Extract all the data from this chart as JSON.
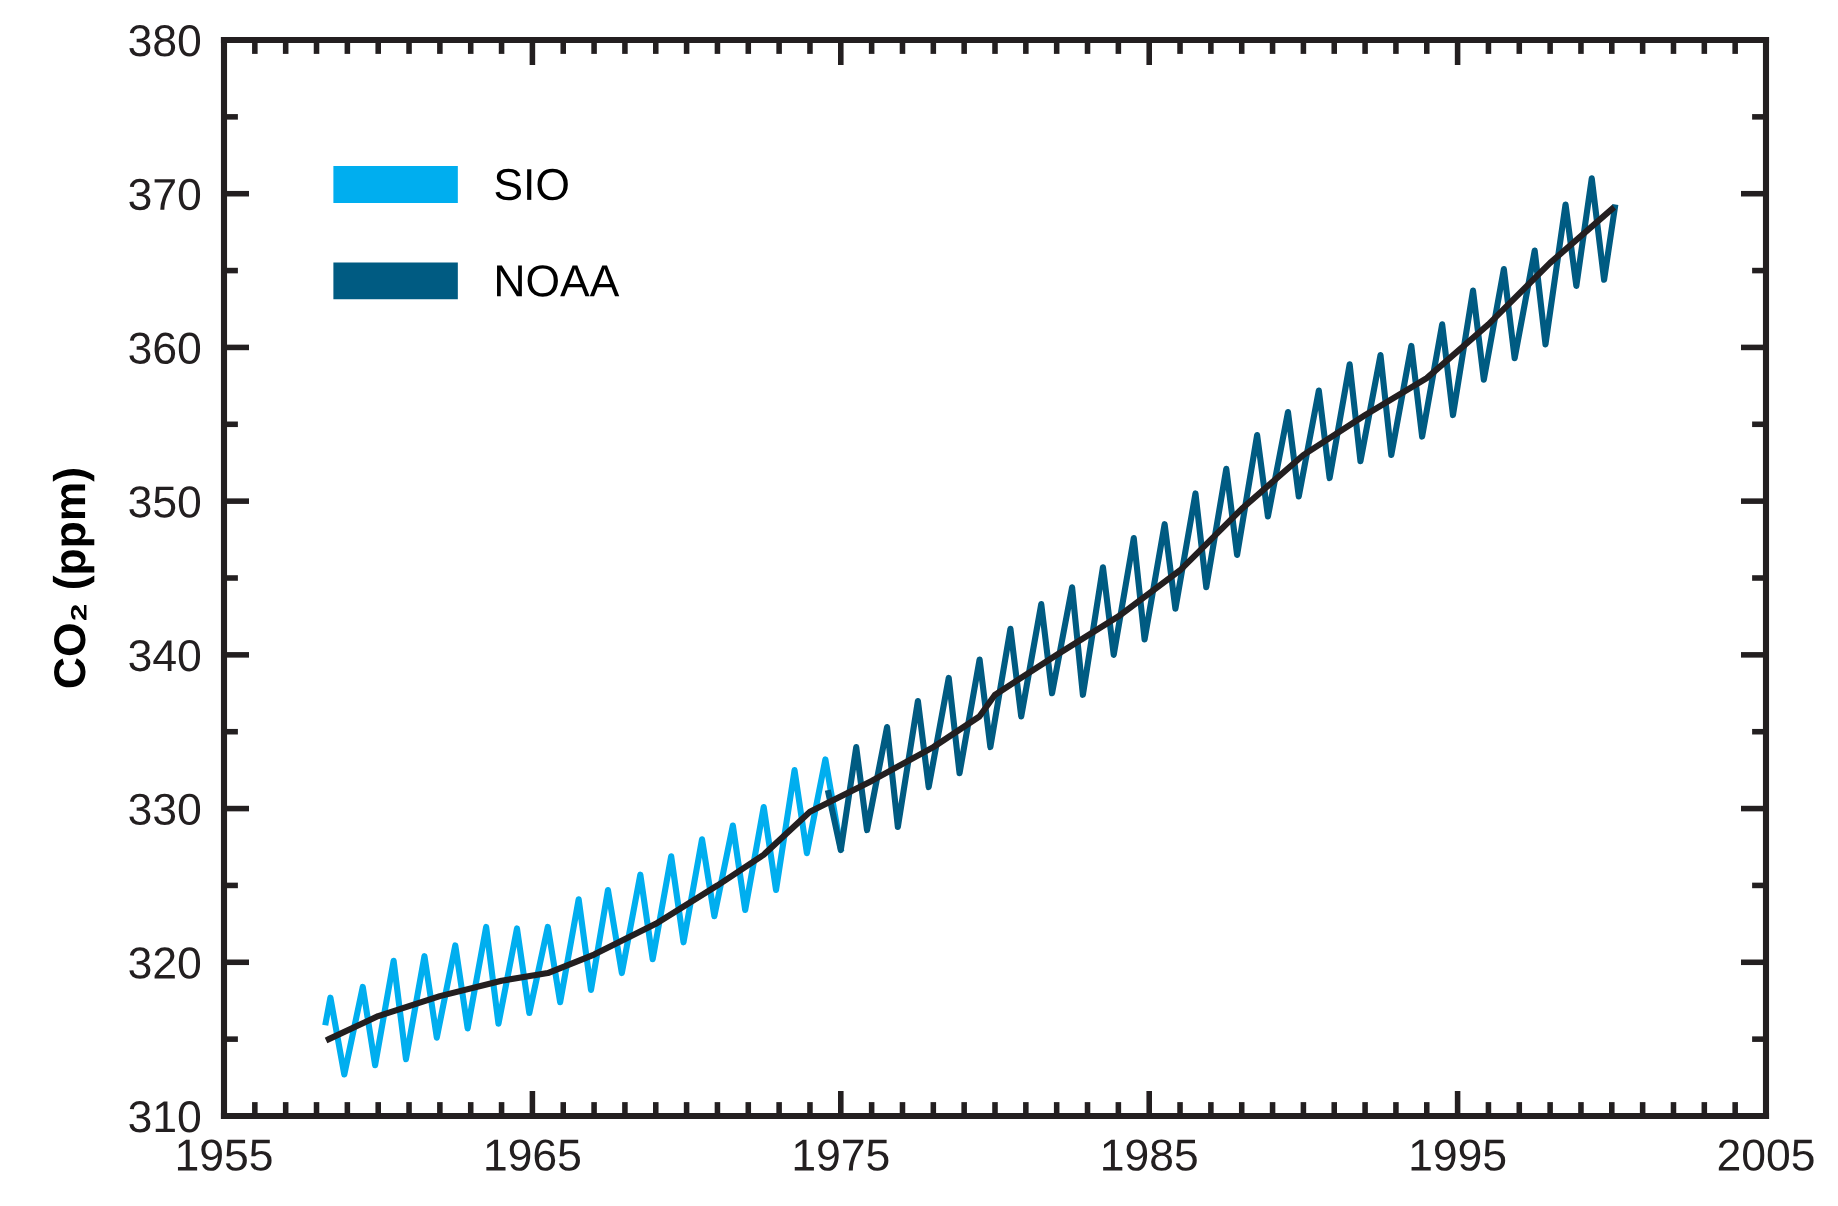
{
  "chart_data": {
    "type": "line",
    "ylabel": "CO₂ (ppm)",
    "xlim": [
      1955,
      2005
    ],
    "ylim": [
      310,
      380
    ],
    "xticks": [
      1955,
      {
        "value": 1956,
        "label": null
      },
      {
        "value": 1957,
        "label": null
      },
      {
        "value": 1958,
        "label": null
      },
      {
        "value": 1959,
        "label": null
      },
      {
        "value": 1960,
        "label": null
      },
      {
        "value": 1961,
        "label": null
      },
      {
        "value": 1962,
        "label": null
      },
      {
        "value": 1963,
        "label": null
      },
      {
        "value": 1964,
        "label": null
      },
      1965,
      {
        "value": 1966,
        "label": null
      },
      {
        "value": 1967,
        "label": null
      },
      {
        "value": 1968,
        "label": null
      },
      {
        "value": 1969,
        "label": null
      },
      {
        "value": 1970,
        "label": null
      },
      {
        "value": 1971,
        "label": null
      },
      {
        "value": 1972,
        "label": null
      },
      {
        "value": 1973,
        "label": null
      },
      {
        "value": 1974,
        "label": null
      },
      1975,
      {
        "value": 1976,
        "label": null
      },
      {
        "value": 1977,
        "label": null
      },
      {
        "value": 1978,
        "label": null
      },
      {
        "value": 1979,
        "label": null
      },
      {
        "value": 1980,
        "label": null
      },
      {
        "value": 1981,
        "label": null
      },
      {
        "value": 1982,
        "label": null
      },
      {
        "value": 1983,
        "label": null
      },
      {
        "value": 1984,
        "label": null
      },
      1985,
      {
        "value": 1986,
        "label": null
      },
      {
        "value": 1987,
        "label": null
      },
      {
        "value": 1988,
        "label": null
      },
      {
        "value": 1989,
        "label": null
      },
      {
        "value": 1990,
        "label": null
      },
      {
        "value": 1991,
        "label": null
      },
      {
        "value": 1992,
        "label": null
      },
      {
        "value": 1993,
        "label": null
      },
      {
        "value": 1994,
        "label": null
      },
      1995,
      {
        "value": 1996,
        "label": null
      },
      {
        "value": 1997,
        "label": null
      },
      {
        "value": 1998,
        "label": null
      },
      {
        "value": 1999,
        "label": null
      },
      {
        "value": 2000,
        "label": null
      },
      {
        "value": 2001,
        "label": null
      },
      {
        "value": 2002,
        "label": null
      },
      {
        "value": 2003,
        "label": null
      },
      {
        "value": 2004,
        "label": null
      },
      2005
    ],
    "yticks": [
      310,
      {
        "value": 315,
        "label": null
      },
      320,
      {
        "value": 325,
        "label": null
      },
      330,
      {
        "value": 335,
        "label": null
      },
      340,
      {
        "value": 345,
        "label": null
      },
      350,
      {
        "value": 355,
        "label": null
      },
      360,
      {
        "value": 365,
        "label": null
      },
      370,
      {
        "value": 375,
        "label": null
      },
      380
    ],
    "grid": false,
    "legend": "top left",
    "marker": "none",
    "line_style": "solid",
    "series": [
      {
        "name": "SIO",
        "color": "#00aeef",
        "x": [
          1958.3,
          1958.45,
          1958.9,
          1959.5,
          1959.9,
          1960.5,
          1960.9,
          1961.5,
          1961.9,
          1962.5,
          1962.9,
          1963.5,
          1963.9,
          1964.5,
          1964.9,
          1965.5,
          1965.9,
          1966.5,
          1966.9,
          1967.45,
          1967.9,
          1968.5,
          1968.9,
          1969.5,
          1969.9,
          1970.5,
          1970.9,
          1971.5,
          1971.9,
          1972.5,
          1972.9,
          1973.5,
          1973.9,
          1974.5,
          1975.0
        ],
        "values": [
          316.1,
          317.7,
          312.7,
          318.4,
          313.3,
          320.1,
          313.7,
          320.4,
          315.1,
          321.1,
          315.7,
          322.3,
          316.0,
          322.2,
          316.7,
          322.3,
          317.4,
          324.1,
          318.2,
          324.7,
          319.3,
          325.7,
          320.2,
          326.9,
          321.3,
          328.0,
          323.0,
          328.9,
          323.4,
          330.1,
          324.7,
          332.5,
          327.1,
          333.2,
          327.4
        ]
      },
      {
        "name": "NOAA",
        "color": "#005b82",
        "x": [
          1974.6,
          1975.0,
          1975.5,
          1975.85,
          1976.5,
          1976.85,
          1977.5,
          1977.85,
          1978.5,
          1978.85,
          1979.5,
          1979.85,
          1980.5,
          1980.85,
          1981.5,
          1981.85,
          1982.5,
          1982.85,
          1983.5,
          1983.85,
          1984.5,
          1984.85,
          1985.5,
          1985.85,
          1986.5,
          1986.85,
          1987.5,
          1987.85,
          1988.5,
          1988.85,
          1989.5,
          1989.85,
          1990.5,
          1990.85,
          1991.5,
          1991.85,
          1992.5,
          1992.85,
          1993.5,
          1993.85,
          1994.5,
          1994.85,
          1995.5,
          1995.85,
          1996.5,
          1996.85,
          1997.5,
          1997.85,
          1998.5,
          1998.85,
          1999.35,
          1999.75,
          2000.1
        ],
        "values": [
          331.0,
          327.3,
          334.0,
          328.6,
          335.3,
          328.8,
          337.0,
          331.4,
          338.5,
          332.3,
          339.7,
          334.0,
          341.7,
          336.0,
          343.3,
          337.5,
          344.4,
          337.4,
          345.7,
          340.0,
          347.6,
          341.0,
          348.5,
          343.0,
          350.5,
          344.4,
          352.1,
          346.5,
          354.3,
          349.0,
          355.8,
          350.3,
          357.2,
          351.5,
          358.9,
          352.6,
          359.5,
          353.0,
          360.1,
          354.2,
          361.5,
          355.6,
          363.7,
          357.9,
          365.1,
          359.3,
          366.3,
          360.2,
          369.3,
          364.0,
          371.0,
          364.4,
          369.1
        ]
      },
      {
        "color": "#231f20",
        "x": [
          1958.4,
          1960,
          1962,
          1964,
          1965.5,
          1967,
          1969,
          1971,
          1972.5,
          1974,
          1976,
          1978,
          1979.5,
          1980,
          1982,
          1984,
          1986,
          1988,
          1990,
          1992,
          1994,
          1996,
          1998,
          2000
        ],
        "values": [
          315.0,
          316.5,
          317.8,
          318.8,
          319.3,
          320.5,
          322.5,
          325.0,
          327.0,
          329.8,
          331.8,
          334.0,
          336.0,
          337.4,
          340.0,
          342.5,
          345.5,
          349.5,
          353.0,
          355.6,
          358.0,
          361.5,
          365.5,
          369.0
        ]
      }
    ]
  }
}
